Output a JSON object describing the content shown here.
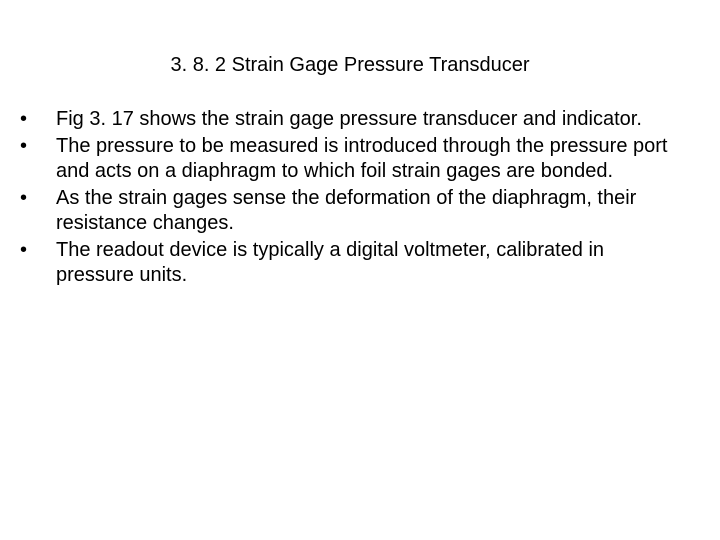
{
  "slide": {
    "title": "3. 8. 2 Strain Gage Pressure Transducer",
    "title_color": "#000000",
    "title_fontsize": 20,
    "body_color": "#000000",
    "body_fontsize": 20,
    "background_color": "#ffffff",
    "bullet_glyph": "•",
    "bullets": [
      "Fig 3. 17 shows the strain gage pressure transducer and indicator.",
      "The pressure to be measured is introduced through the pressure port and acts on a diaphragm to which foil strain gages are bonded.",
      "As the strain gages sense the deformation of the diaphragm, their resistance changes.",
      "The readout device is typically a digital voltmeter, calibrated in pressure units."
    ]
  }
}
